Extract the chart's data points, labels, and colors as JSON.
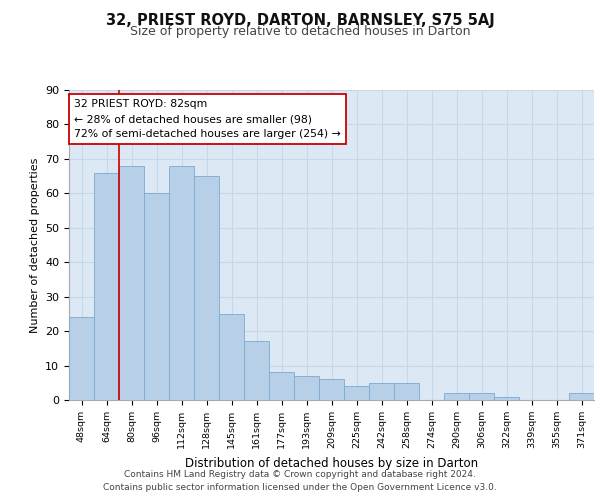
{
  "title1": "32, PRIEST ROYD, DARTON, BARNSLEY, S75 5AJ",
  "title2": "Size of property relative to detached houses in Darton",
  "xlabel": "Distribution of detached houses by size in Darton",
  "ylabel": "Number of detached properties",
  "categories": [
    "48sqm",
    "64sqm",
    "80sqm",
    "96sqm",
    "112sqm",
    "128sqm",
    "145sqm",
    "161sqm",
    "177sqm",
    "193sqm",
    "209sqm",
    "225sqm",
    "242sqm",
    "258sqm",
    "274sqm",
    "290sqm",
    "306sqm",
    "322sqm",
    "339sqm",
    "355sqm",
    "371sqm"
  ],
  "values": [
    24,
    66,
    68,
    60,
    68,
    65,
    25,
    17,
    8,
    7,
    6,
    4,
    5,
    5,
    0,
    2,
    2,
    1,
    0,
    0,
    2
  ],
  "bar_color": "#b8cfe8",
  "bar_edge_color": "#7aaad0",
  "vline_x": 1.5,
  "annotation_text": "32 PRIEST ROYD: 82sqm\n← 28% of detached houses are smaller (98)\n72% of semi-detached houses are larger (254) →",
  "annotation_box_color": "#ffffff",
  "annotation_box_edge_color": "#cc0000",
  "vline_color": "#cc0000",
  "grid_color": "#c5d8ea",
  "background_color": "#dde8f5",
  "footer": "Contains HM Land Registry data © Crown copyright and database right 2024.\nContains public sector information licensed under the Open Government Licence v3.0.",
  "ylim": [
    0,
    90
  ],
  "yticks": [
    0,
    10,
    20,
    30,
    40,
    50,
    60,
    70,
    80,
    90
  ]
}
